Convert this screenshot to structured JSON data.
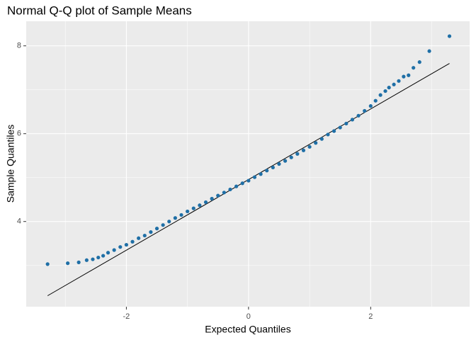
{
  "chart_data": {
    "type": "scatter",
    "title": "Normal Q-Q plot of Sample Means",
    "x_label": "Expected Quantiles",
    "y_label": "Sample Quantiles",
    "x": [
      -3.29,
      -2.96,
      -2.78,
      -2.65,
      -2.55,
      -2.46,
      -2.38,
      -2.3,
      -2.2,
      -2.1,
      -2.0,
      -1.9,
      -1.8,
      -1.7,
      -1.6,
      -1.5,
      -1.4,
      -1.3,
      -1.2,
      -1.1,
      -1.0,
      -0.9,
      -0.8,
      -0.7,
      -0.6,
      -0.5,
      -0.4,
      -0.3,
      -0.2,
      -0.1,
      0,
      0.1,
      0.2,
      0.3,
      0.4,
      0.5,
      0.6,
      0.7,
      0.8,
      0.9,
      1.0,
      1.1,
      1.2,
      1.3,
      1.4,
      1.5,
      1.6,
      1.7,
      1.8,
      1.9,
      2.0,
      2.08,
      2.16,
      2.24,
      2.3,
      2.38,
      2.46,
      2.54,
      2.62,
      2.7,
      2.8,
      2.96,
      3.29
    ],
    "values": [
      3.03,
      3.05,
      3.07,
      3.12,
      3.14,
      3.18,
      3.22,
      3.29,
      3.35,
      3.42,
      3.47,
      3.54,
      3.62,
      3.68,
      3.76,
      3.84,
      3.92,
      4.0,
      4.08,
      4.15,
      4.23,
      4.3,
      4.37,
      4.44,
      4.52,
      4.59,
      4.66,
      4.73,
      4.8,
      4.87,
      4.93,
      5.01,
      5.08,
      5.16,
      5.23,
      5.31,
      5.38,
      5.46,
      5.54,
      5.62,
      5.7,
      5.79,
      5.88,
      5.98,
      6.06,
      6.14,
      6.23,
      6.32,
      6.41,
      6.52,
      6.63,
      6.75,
      6.88,
      6.97,
      7.05,
      7.12,
      7.2,
      7.3,
      7.33,
      7.5,
      7.63,
      7.88,
      8.22
    ],
    "color": "#1f6fa6",
    "reference_line": {
      "x": [
        -3.29,
        3.29
      ],
      "values": [
        2.31,
        7.6
      ],
      "color": "#000000"
    },
    "xlim": [
      -3.64,
      3.62
    ],
    "ylim": [
      2.06,
      8.56
    ],
    "xticks": [
      -2,
      0,
      2
    ],
    "yticks": [
      4,
      6,
      8
    ],
    "x_minor_breaks": [
      -3,
      -1,
      1,
      3
    ],
    "y_minor_breaks": [
      3,
      5,
      7
    ],
    "grid": true,
    "panel_color": "#ebebeb"
  }
}
